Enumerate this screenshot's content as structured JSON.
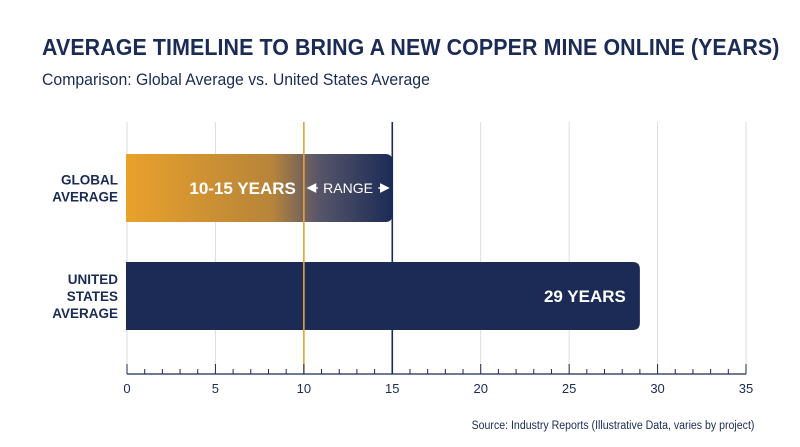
{
  "title": "AVERAGE TIMELINE TO BRING A NEW COPPER MINE ONLINE (YEARS)",
  "subtitle": "Comparison: Global Average vs. United States Average",
  "source": "Source: Industry Reports (Illustrative Data, varies by project)",
  "colors": {
    "navy": "#1b2b56",
    "gold": "#e9a12b",
    "grid": "#d9dbe0",
    "ref_gold": "#e2a33a",
    "ref_navy": "#1b2b56"
  },
  "chart_data": {
    "type": "bar",
    "orientation": "horizontal",
    "categories": [
      [
        "GLOBAL",
        "AVERAGE"
      ],
      [
        "UNITED",
        "STATES",
        "AVERAGE"
      ]
    ],
    "bars": [
      {
        "category": "GLOBAL AVERAGE",
        "start": 0,
        "end": 15,
        "range": [
          10,
          15
        ],
        "label": "10-15 YEARS",
        "range_label": "RANGE",
        "fill": "gradient gold to navy"
      },
      {
        "category": "UNITED STATES AVERAGE",
        "start": 0,
        "end": 29,
        "label": "29 YEARS",
        "fill": "navy"
      }
    ],
    "reference_lines": [
      {
        "x": 10,
        "color": "gold"
      },
      {
        "x": 15,
        "color": "navy"
      }
    ],
    "xlim": [
      0,
      35
    ],
    "xticks": [
      0,
      5,
      10,
      15,
      20,
      25,
      30,
      35
    ],
    "minor_tick_step": 1,
    "grid": true,
    "legend": "none"
  }
}
